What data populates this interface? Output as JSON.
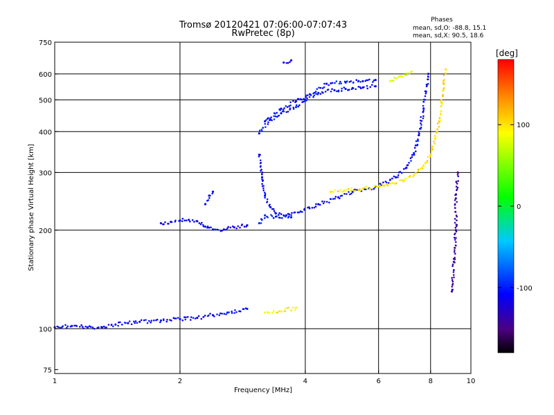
{
  "header": {
    "title": "Tromsø 20120421 07:06:00-07:07:43",
    "subtitle": "RwPretec (8p)"
  },
  "phases": {
    "title": "Phases",
    "line_o": "mean, sd,O: -88.8, 15.1",
    "line_x": "mean, sd,X:  90.5, 18.6"
  },
  "colorbar": {
    "label": "[deg]",
    "range": [
      -180,
      180
    ],
    "ticks": [
      {
        "value": 100,
        "label": "100"
      },
      {
        "value": 0,
        "label": "0"
      },
      {
        "value": -100,
        "label": "-100"
      }
    ]
  },
  "chart_data": {
    "type": "scatter",
    "xlabel": "Frequency [MHz]",
    "ylabel": "Stationary phase Virtual Height [km]",
    "xscale": "log",
    "yscale": "log",
    "xlim": [
      1,
      10
    ],
    "ylim": [
      73,
      750
    ],
    "grid": true,
    "x_ticks": [
      {
        "value": 1,
        "label": "1"
      },
      {
        "value": 2,
        "label": "2"
      },
      {
        "value": 4,
        "label": "4"
      },
      {
        "value": 6,
        "label": "6"
      },
      {
        "value": 8,
        "label": "8"
      },
      {
        "value": 10,
        "label": "10"
      }
    ],
    "y_ticks": [
      {
        "value": 75,
        "label": "75"
      },
      {
        "value": 100,
        "label": "100"
      },
      {
        "value": 200,
        "label": "200"
      },
      {
        "value": 300,
        "label": "300"
      },
      {
        "value": 400,
        "label": "400"
      },
      {
        "value": 500,
        "label": "500"
      },
      {
        "value": 600,
        "label": "600"
      },
      {
        "value": 750,
        "label": "750"
      }
    ],
    "grid_x": [
      2,
      4,
      6,
      8
    ],
    "grid_y": [
      100,
      200,
      300,
      400,
      500,
      600
    ],
    "traces": [
      {
        "phase": -110,
        "points": [
          [
            1.0,
            101
          ],
          [
            1.1,
            102
          ],
          [
            1.2,
            101
          ],
          [
            1.3,
            101
          ],
          [
            1.4,
            103
          ],
          [
            1.5,
            104
          ],
          [
            1.6,
            105
          ],
          [
            1.8,
            106
          ],
          [
            2.0,
            107
          ],
          [
            2.2,
            108
          ],
          [
            2.4,
            110
          ],
          [
            2.6,
            112
          ],
          [
            2.9,
            115
          ]
        ]
      },
      {
        "phase": -110,
        "points": [
          [
            1.8,
            210
          ],
          [
            1.9,
            212
          ],
          [
            2.0,
            214
          ],
          [
            2.1,
            215
          ],
          [
            2.2,
            213
          ],
          [
            2.3,
            205
          ],
          [
            2.4,
            201
          ],
          [
            2.55,
            201
          ],
          [
            2.7,
            204
          ],
          [
            2.9,
            207
          ]
        ]
      },
      {
        "phase": -110,
        "points": [
          [
            2.3,
            240
          ],
          [
            2.35,
            255
          ],
          [
            2.4,
            262
          ]
        ]
      },
      {
        "phase": -110,
        "points": [
          [
            3.1,
            340
          ],
          [
            3.15,
            290
          ],
          [
            3.2,
            255
          ],
          [
            3.3,
            235
          ],
          [
            3.4,
            225
          ],
          [
            3.6,
            222
          ],
          [
            3.9,
            228
          ],
          [
            4.3,
            240
          ],
          [
            4.8,
            252
          ],
          [
            5.2,
            262
          ],
          [
            5.7,
            268
          ],
          [
            6.1,
            275
          ],
          [
            6.6,
            290
          ],
          [
            7.0,
            310
          ],
          [
            7.3,
            340
          ],
          [
            7.5,
            390
          ],
          [
            7.7,
            470
          ],
          [
            7.8,
            530
          ],
          [
            7.9,
            600
          ]
        ]
      },
      {
        "phase": -105,
        "points": [
          [
            3.1,
            395
          ],
          [
            3.3,
            435
          ],
          [
            3.5,
            455
          ],
          [
            3.8,
            475
          ],
          [
            4.0,
            500
          ],
          [
            4.3,
            525
          ],
          [
            4.7,
            535
          ],
          [
            5.0,
            540
          ],
          [
            5.5,
            545
          ],
          [
            5.9,
            550
          ]
        ]
      },
      {
        "phase": -105,
        "points": [
          [
            3.2,
            430
          ],
          [
            3.5,
            470
          ],
          [
            3.8,
            495
          ],
          [
            4.1,
            520
          ],
          [
            4.5,
            560
          ],
          [
            5.0,
            565
          ],
          [
            5.5,
            570
          ],
          [
            5.9,
            575
          ]
        ]
      },
      {
        "phase": -110,
        "points": [
          [
            3.55,
            650
          ],
          [
            3.7,
            660
          ]
        ]
      },
      {
        "phase": -100,
        "points": [
          [
            3.1,
            210
          ],
          [
            3.2,
            222
          ],
          [
            3.4,
            220
          ],
          [
            3.7,
            219
          ]
        ]
      },
      {
        "phase": 100,
        "points": [
          [
            4.6,
            262
          ],
          [
            5.0,
            265
          ],
          [
            5.5,
            268
          ],
          [
            6.0,
            272
          ],
          [
            6.4,
            278
          ],
          [
            6.9,
            285
          ],
          [
            7.3,
            295
          ],
          [
            7.7,
            315
          ],
          [
            8.0,
            340
          ],
          [
            8.2,
            380
          ],
          [
            8.4,
            430
          ],
          [
            8.5,
            490
          ],
          [
            8.6,
            560
          ],
          [
            8.7,
            620
          ]
        ]
      },
      {
        "phase": 95,
        "points": [
          [
            3.2,
            112
          ],
          [
            3.5,
            113
          ],
          [
            3.8,
            116
          ]
        ]
      },
      {
        "phase": 80,
        "points": [
          [
            6.4,
            570
          ],
          [
            6.8,
            590
          ],
          [
            7.2,
            610
          ]
        ]
      },
      {
        "phase": -140,
        "points": [
          [
            9.0,
            130
          ],
          [
            9.1,
            160
          ],
          [
            9.2,
            200
          ],
          [
            9.2,
            250
          ],
          [
            9.3,
            300
          ]
        ]
      }
    ]
  }
}
